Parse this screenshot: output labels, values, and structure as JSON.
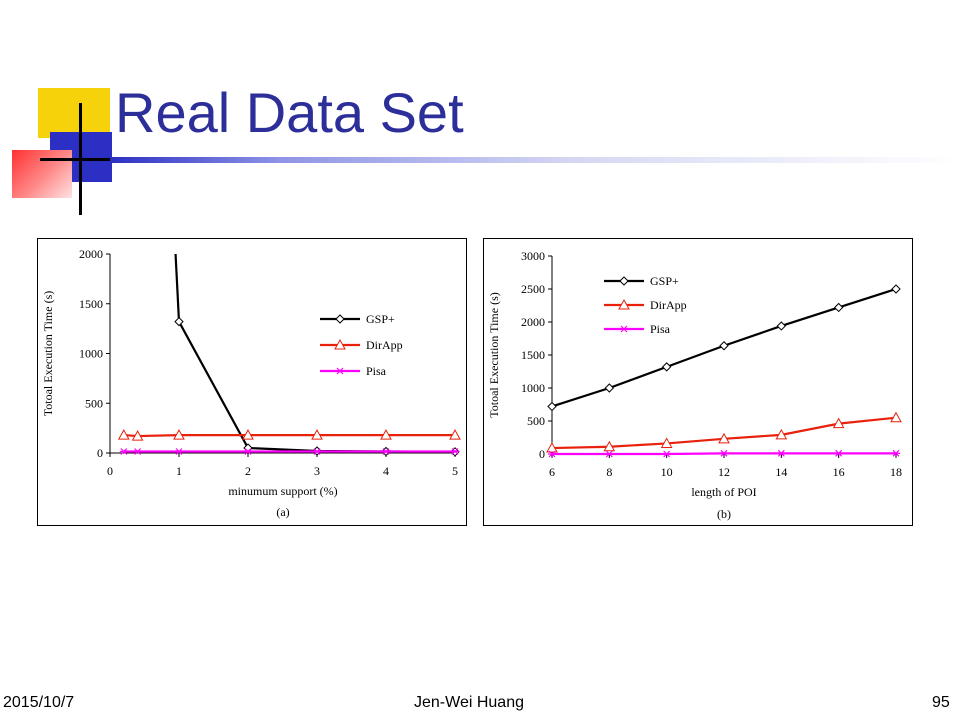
{
  "slide": {
    "title": "Real Data Set",
    "footer": {
      "date": "2015/10/7",
      "author": "Jen-Wei Huang",
      "page": "95"
    }
  },
  "chart_data": [
    {
      "type": "line",
      "title": "",
      "caption": "(a)",
      "xlabel": "minumum support (%)",
      "ylabel": "Totoal Execution Time (s)",
      "xlim": [
        0,
        5
      ],
      "ylim": [
        0,
        2000
      ],
      "xticks": [
        0,
        1,
        2,
        3,
        4,
        5
      ],
      "yticks": [
        0,
        500,
        1000,
        1500,
        2000
      ],
      "grid": false,
      "legend": "center-right",
      "series": [
        {
          "name": "GSP+",
          "color": "#000000",
          "marker": "diamond",
          "x": [
            0.95,
            1,
            2,
            3,
            4,
            5
          ],
          "y": [
            2000,
            1320,
            50,
            20,
            15,
            12
          ],
          "marker_x": [
            1,
            2,
            3,
            4,
            5
          ]
        },
        {
          "name": "DirApp",
          "color": "#e8200c",
          "marker": "triangle",
          "x": [
            0.2,
            0.4,
            1,
            2,
            3,
            4,
            5
          ],
          "y": [
            180,
            170,
            180,
            180,
            180,
            180,
            180
          ]
        },
        {
          "name": "Pisa",
          "color": "#ff00ff",
          "marker": "star",
          "x": [
            0.2,
            0.4,
            1,
            2,
            3,
            4,
            5
          ],
          "y": [
            15,
            15,
            15,
            15,
            15,
            15,
            15
          ]
        }
      ]
    },
    {
      "type": "line",
      "title": "",
      "caption": "(b)",
      "xlabel": "length of POI",
      "ylabel": "Totoal Execution Time (s)",
      "xlim": [
        6,
        18
      ],
      "ylim": [
        0,
        3000
      ],
      "xticks": [
        6,
        8,
        10,
        12,
        14,
        16,
        18
      ],
      "yticks": [
        0,
        500,
        1000,
        1500,
        2000,
        2500,
        3000
      ],
      "grid": false,
      "legend": "top-center",
      "series": [
        {
          "name": "GSP+",
          "color": "#000000",
          "marker": "diamond",
          "x": [
            6,
            8,
            10,
            12,
            14,
            16,
            18
          ],
          "y": [
            720,
            1000,
            1320,
            1640,
            1940,
            2220,
            2500
          ]
        },
        {
          "name": "DirApp",
          "color": "#e8200c",
          "marker": "triangle",
          "x": [
            6,
            8,
            10,
            12,
            14,
            16,
            18
          ],
          "y": [
            90,
            110,
            160,
            230,
            290,
            460,
            550
          ]
        },
        {
          "name": "Pisa",
          "color": "#ff00ff",
          "marker": "star",
          "x": [
            6,
            8,
            10,
            12,
            14,
            16,
            18
          ],
          "y": [
            0,
            0,
            0,
            10,
            10,
            10,
            10
          ]
        }
      ]
    }
  ]
}
